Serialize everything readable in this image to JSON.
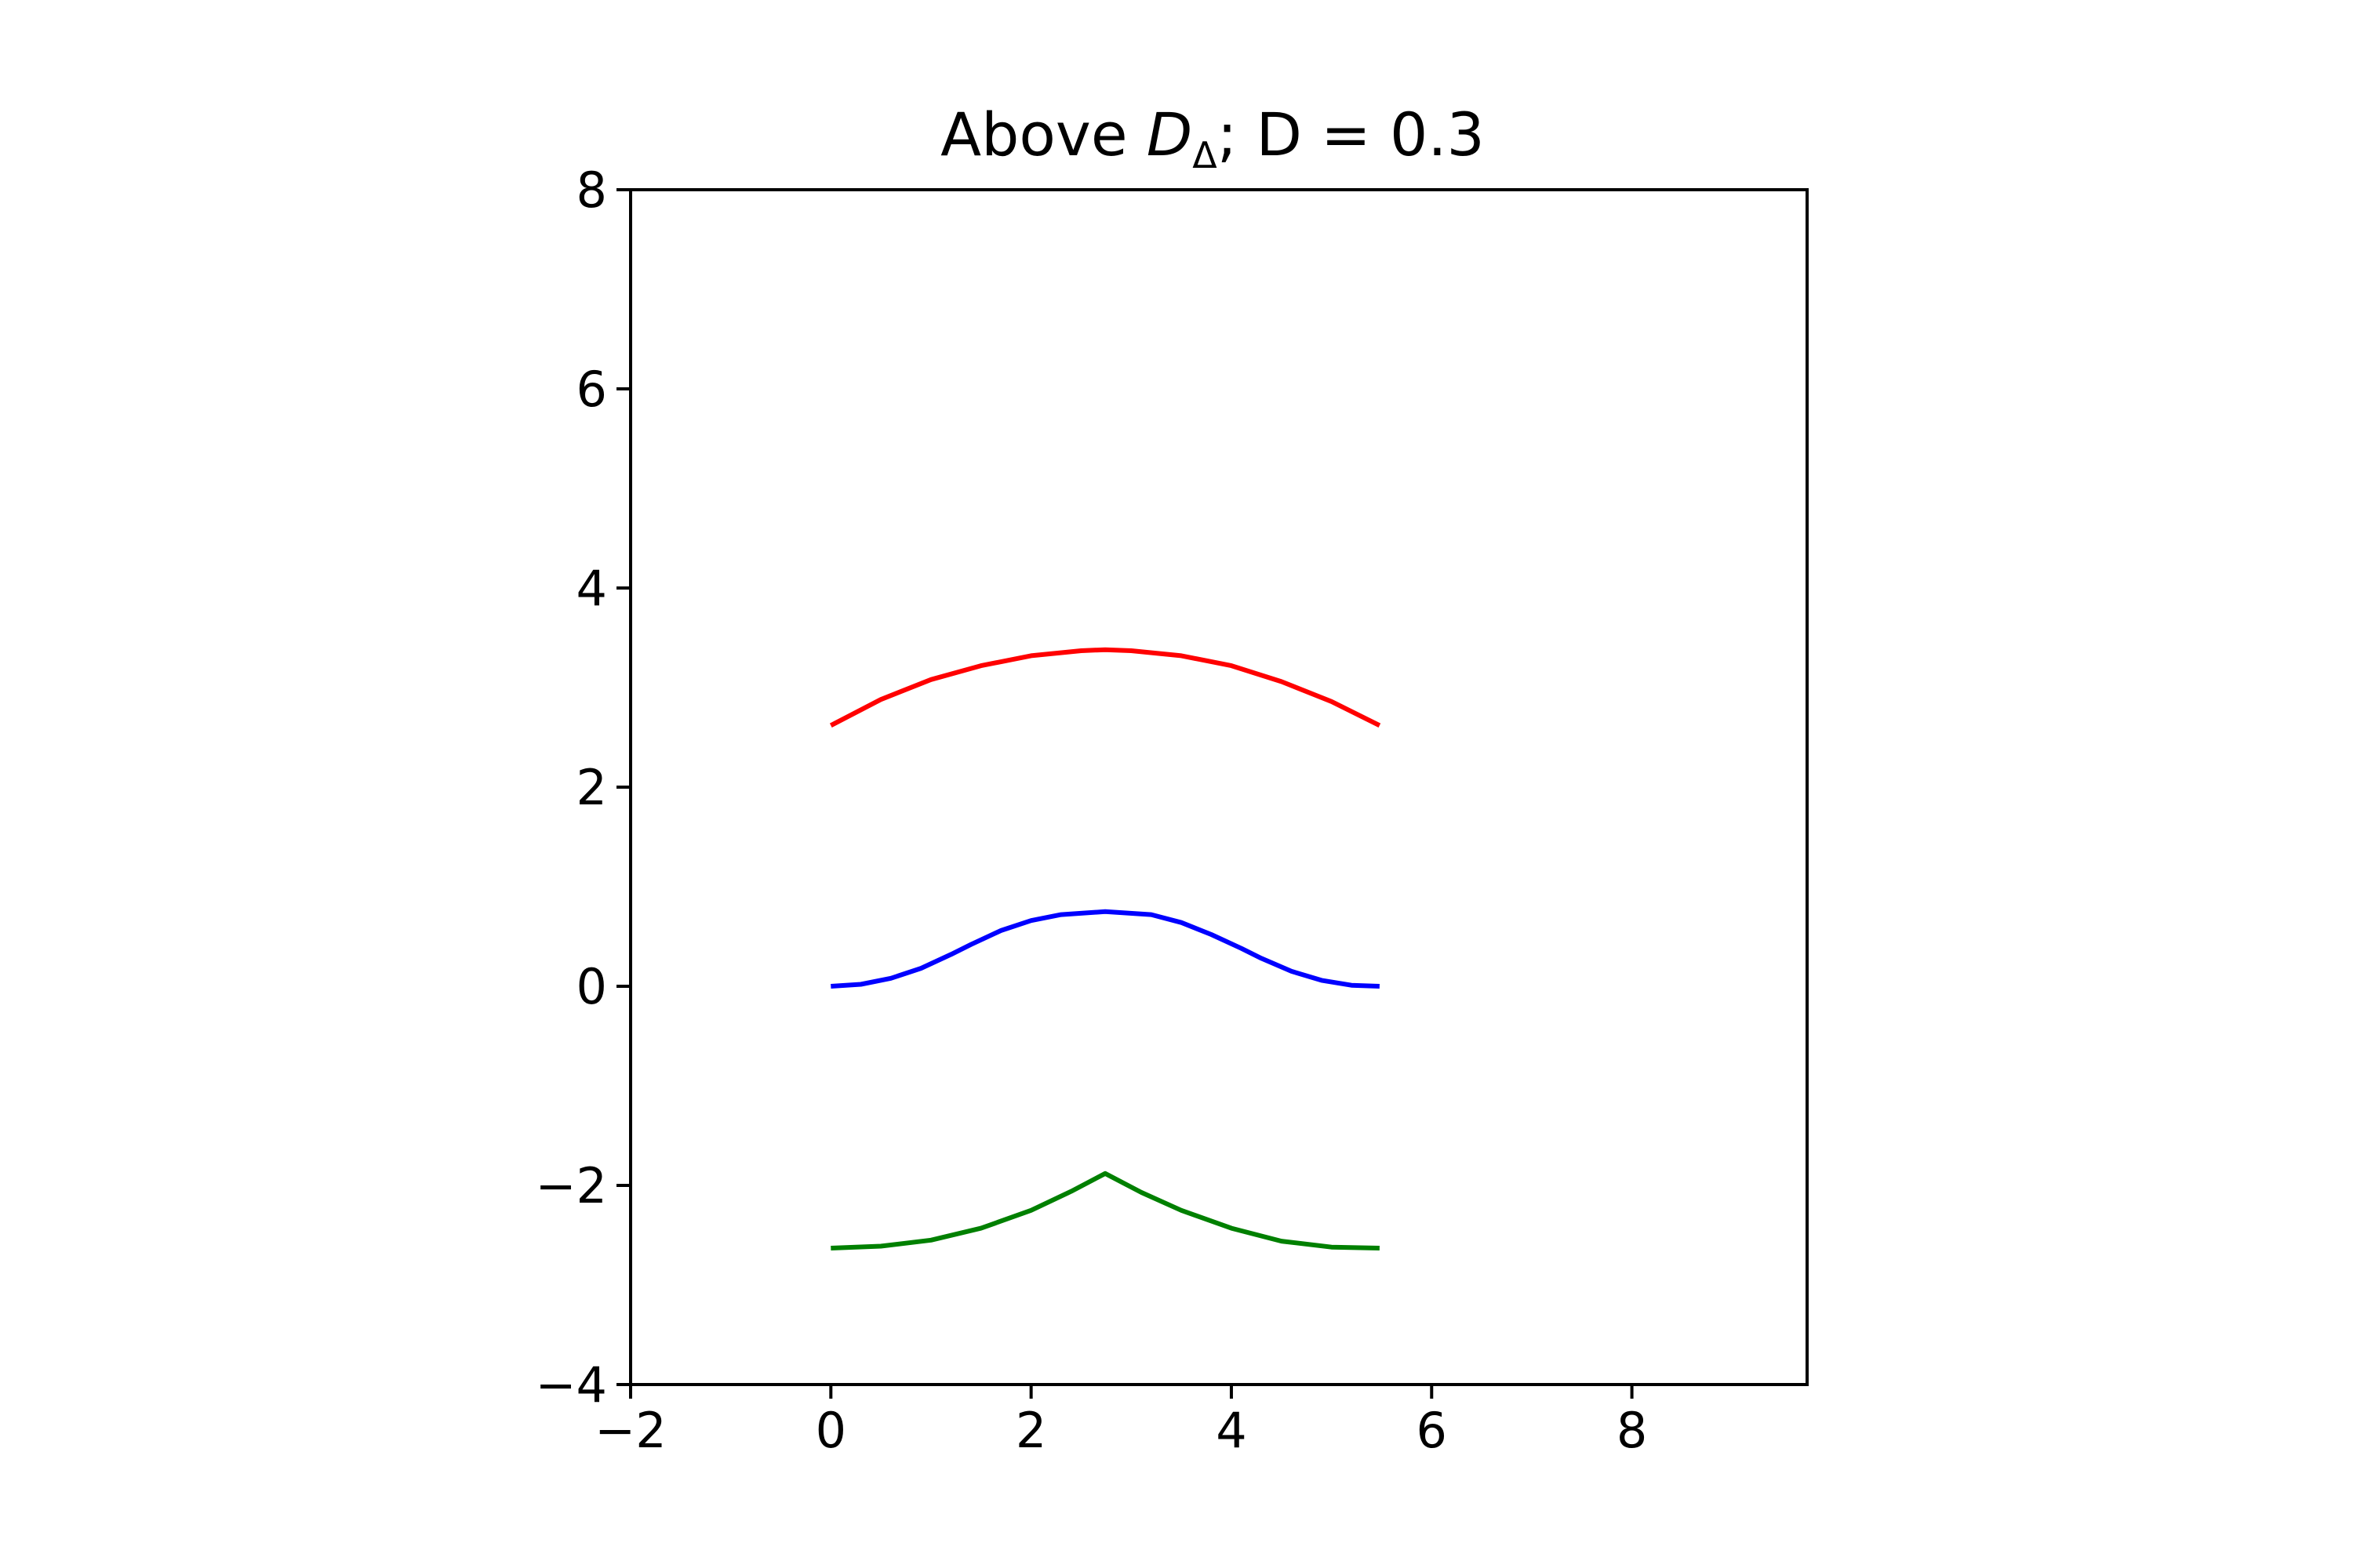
{
  "chart_data": {
    "type": "line",
    "title": {
      "prefix": "Above ",
      "symbol": "D",
      "subscript": "Δ",
      "suffix": "; D = 0.3"
    },
    "xlabel": "",
    "ylabel": "",
    "xlim": [
      -2,
      9.75
    ],
    "ylim": [
      -4,
      8
    ],
    "grid": false,
    "legend": "none",
    "xticks": [
      {
        "value": -2,
        "label": "−2"
      },
      {
        "value": 0,
        "label": "0"
      },
      {
        "value": 2,
        "label": "2"
      },
      {
        "value": 4,
        "label": "4"
      },
      {
        "value": 6,
        "label": "6"
      },
      {
        "value": 8,
        "label": "8"
      }
    ],
    "yticks": [
      {
        "value": -4,
        "label": "−4"
      },
      {
        "value": -2,
        "label": "−2"
      },
      {
        "value": 0,
        "label": "0"
      },
      {
        "value": 2,
        "label": "2"
      },
      {
        "value": 4,
        "label": "4"
      },
      {
        "value": 6,
        "label": "6"
      },
      {
        "value": 8,
        "label": "8"
      }
    ],
    "series": [
      {
        "name": "red",
        "color": "#ff0000",
        "x": [
          0,
          0.5,
          1.0,
          1.5,
          2.0,
          2.5,
          2.74,
          3.0,
          3.5,
          4.0,
          4.5,
          5.0,
          5.48
        ],
        "y": [
          2.62,
          2.88,
          3.08,
          3.22,
          3.32,
          3.37,
          3.38,
          3.37,
          3.32,
          3.22,
          3.06,
          2.86,
          2.62
        ]
      },
      {
        "name": "blue",
        "color": "#0000ff",
        "x": [
          0,
          0.3,
          0.6,
          0.9,
          1.2,
          1.4,
          1.7,
          2.0,
          2.3,
          2.74,
          3.2,
          3.5,
          3.8,
          4.1,
          4.3,
          4.6,
          4.9,
          5.2,
          5.48
        ],
        "y": [
          0.0,
          0.02,
          0.08,
          0.18,
          0.32,
          0.42,
          0.56,
          0.66,
          0.72,
          0.75,
          0.72,
          0.64,
          0.52,
          0.38,
          0.28,
          0.15,
          0.06,
          0.01,
          0.0
        ]
      },
      {
        "name": "green",
        "color": "#008000",
        "x": [
          0,
          0.5,
          1.0,
          1.5,
          2.0,
          2.4,
          2.74,
          3.1,
          3.5,
          4.0,
          4.5,
          5.0,
          5.48
        ],
        "y": [
          -2.63,
          -2.61,
          -2.55,
          -2.43,
          -2.25,
          -2.06,
          -1.88,
          -2.07,
          -2.25,
          -2.43,
          -2.56,
          -2.62,
          -2.63
        ]
      }
    ]
  }
}
